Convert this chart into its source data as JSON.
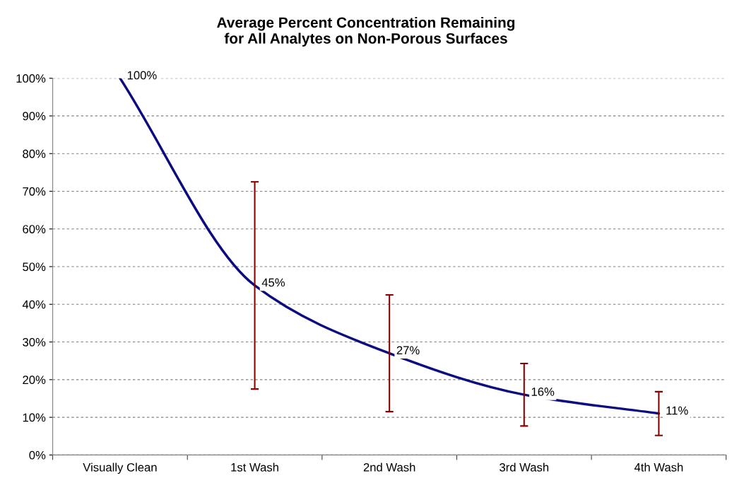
{
  "chart_data": {
    "type": "line",
    "title": "Average Percent Concentration Remaining\nfor All Analytes on Non-Porous Surfaces",
    "categories": [
      "Visually Clean",
      "1st Wash",
      "2nd Wash",
      "3rd Wash",
      "4th Wash"
    ],
    "series": [
      {
        "color": "#0c0c80",
        "values": [
          100,
          45,
          27,
          16,
          11
        ],
        "value_labels": [
          "100%",
          "45%",
          "27%",
          "16%",
          "11%"
        ],
        "errors": [
          null,
          27.5,
          15.5,
          8.3,
          5.8
        ]
      }
    ],
    "ylim": [
      0,
      100
    ],
    "yticks": [
      {
        "value": 0,
        "label": "0%"
      },
      {
        "value": 10,
        "label": "10%"
      },
      {
        "value": 20,
        "label": "20%"
      },
      {
        "value": 30,
        "label": "30%"
      },
      {
        "value": 40,
        "label": "40%"
      },
      {
        "value": 50,
        "label": "50%"
      },
      {
        "value": 60,
        "label": "60%"
      },
      {
        "value": 70,
        "label": "70%"
      },
      {
        "value": 80,
        "label": "80%"
      },
      {
        "value": 90,
        "label": "90%"
      },
      {
        "value": 100,
        "label": "100%"
      }
    ],
    "grid": "y",
    "line_style": "solid"
  }
}
